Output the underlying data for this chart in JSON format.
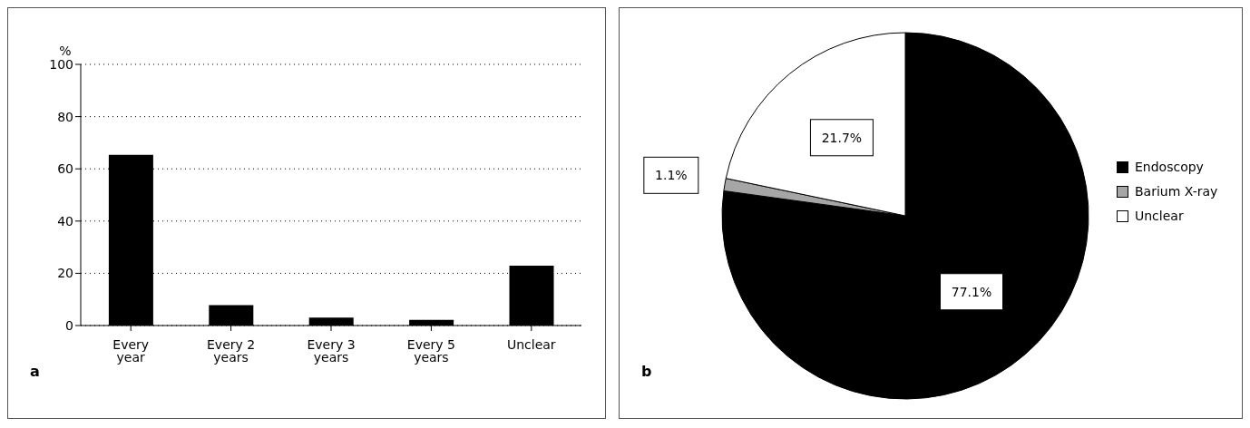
{
  "chart_data": [
    {
      "type": "bar",
      "ylabel": "%",
      "categories": [
        "Every year",
        "Every 2 years",
        "Every 3 years",
        "Every 5 years",
        "Unclear"
      ],
      "values": [
        65.4,
        7.8,
        3.0,
        2.2,
        22.9
      ],
      "color": "#000000",
      "ylim": [
        0,
        100
      ],
      "yticks": [
        0,
        20,
        40,
        60,
        80,
        100
      ],
      "grid": "y",
      "line_style": "dotted",
      "annotations": [
        "a"
      ]
    },
    {
      "type": "pie",
      "categories": [
        "Endoscopy",
        "Barium X-ray",
        "Unclear"
      ],
      "values": [
        77.1,
        1.1,
        21.7
      ],
      "colors": [
        "#000000",
        "#a6a6a6",
        "#ffffff"
      ],
      "value_labels": [
        "77.1%",
        "1.1%",
        "21.7%"
      ],
      "legend": "right",
      "annotations": [
        "b"
      ]
    }
  ]
}
